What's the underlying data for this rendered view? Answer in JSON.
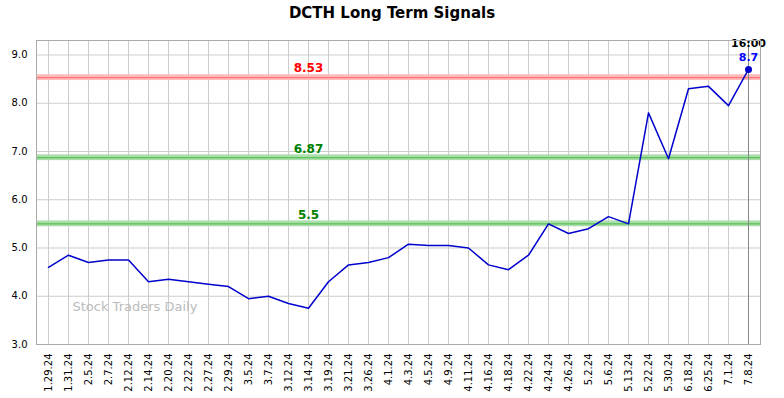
{
  "chart_data": {
    "type": "line",
    "title": "DCTH Long Term Signals",
    "categories": [
      "1.29.24",
      "1.31.24",
      "2.5.24",
      "2.7.24",
      "2.12.24",
      "2.14.24",
      "2.20.24",
      "2.22.24",
      "2.27.24",
      "2.29.24",
      "3.5.24",
      "3.7.24",
      "3.12.24",
      "3.14.24",
      "3.19.24",
      "3.21.24",
      "3.26.24",
      "4.1.24",
      "4.3.24",
      "4.5.24",
      "4.9.24",
      "4.11.24",
      "4.16.24",
      "4.18.24",
      "4.22.24",
      "4.24.24",
      "4.26.24",
      "5.2.24",
      "5.6.24",
      "5.13.24",
      "5.22.24",
      "5.30.24",
      "6.18.24",
      "6.25.24",
      "7.1.24",
      "7.8.24"
    ],
    "values": [
      4.6,
      4.85,
      4.7,
      4.75,
      4.75,
      4.3,
      4.35,
      4.3,
      4.25,
      4.2,
      3.95,
      4.0,
      3.85,
      3.75,
      4.3,
      4.65,
      4.7,
      4.8,
      5.08,
      5.05,
      5.05,
      5.0,
      4.65,
      4.55,
      4.85,
      5.5,
      5.3,
      5.4,
      5.65,
      5.5,
      7.8,
      6.85,
      8.3,
      8.35,
      7.95,
      8.7
    ],
    "color": "#0000cc",
    "ylim": [
      3,
      9.3
    ],
    "yticks": [
      3,
      4,
      5,
      6,
      7,
      8,
      9
    ],
    "grid": true,
    "hlines": [
      {
        "value": 8.53,
        "label": "8.53",
        "band": 0.06,
        "color": "red",
        "line_color": "#ff6666",
        "band_color": "#ffbbbb",
        "x": "3.14.24"
      },
      {
        "value": 6.87,
        "label": "6.87",
        "band": 0.06,
        "color": "green",
        "line_color": "#44bb44",
        "band_color": "#aaddaa",
        "x": "3.14.24"
      },
      {
        "value": 5.5,
        "label": "5.5",
        "band": 0.06,
        "color": "green",
        "line_color": "#44bb44",
        "band_color": "#aaddaa",
        "x": "3.14.24"
      }
    ],
    "last_point": {
      "label": "16:00",
      "value_label": "8.7",
      "color": "blue"
    },
    "watermark": "Stock Traders Daily"
  }
}
